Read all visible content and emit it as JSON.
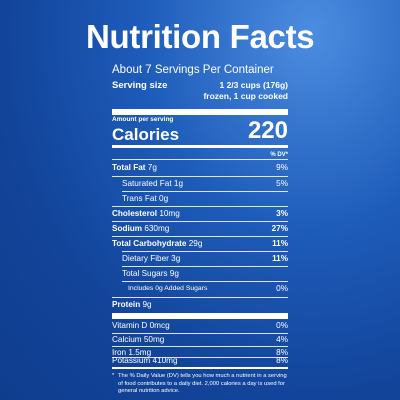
{
  "title": "Nutrition Facts",
  "servings_per_container": "About 7 Servings Per Container",
  "serving_size": {
    "label": "Serving size",
    "value_line1": "1 2/3 cups (176g)",
    "value_line2": "frozen, 1 cup cooked"
  },
  "amount_per_serving": "Amount per serving",
  "calories": {
    "label": "Calories",
    "value": "220"
  },
  "dv_header": "% DV*",
  "nutrients": [
    {
      "name": "Total Fat",
      "amount": "7g",
      "dv": "9%"
    },
    {
      "name": "Saturated Fat",
      "amount": "1g",
      "dv": "5%"
    },
    {
      "name": "Trans Fat",
      "amount": "0g",
      "dv": ""
    },
    {
      "name": "Cholesterol",
      "amount": "10mg",
      "dv": "3%"
    },
    {
      "name": "Sodium",
      "amount": "630mg",
      "dv": "27%"
    },
    {
      "name": "Total Carbohydrate",
      "amount": "29g",
      "dv": "11%"
    },
    {
      "name": "Dietary Fiber",
      "amount": "3g",
      "dv": "11%"
    },
    {
      "name": "Total Sugars",
      "amount": "9g",
      "dv": ""
    },
    {
      "name": "Includes 0g Added Sugars",
      "amount": "",
      "dv": "0%"
    },
    {
      "name": "Protein",
      "amount": "9g",
      "dv": ""
    }
  ],
  "vitamins": [
    {
      "name": "Vitamin D",
      "amount": "0mcg",
      "dv": "0%"
    },
    {
      "name": "Calcium",
      "amount": "50mg",
      "dv": "4%"
    },
    {
      "name": "Iron",
      "amount": "1.5mg",
      "dv": "8%"
    },
    {
      "name": "Potassium",
      "amount": "410mg",
      "dv": "8%"
    }
  ],
  "footnote_star": "*",
  "footnote": "The % Daily Value (DV) tells you how much a nutrient in a serving of food contributes to a daily diet. 2,000 calories a day is used for general nutrition advice."
}
